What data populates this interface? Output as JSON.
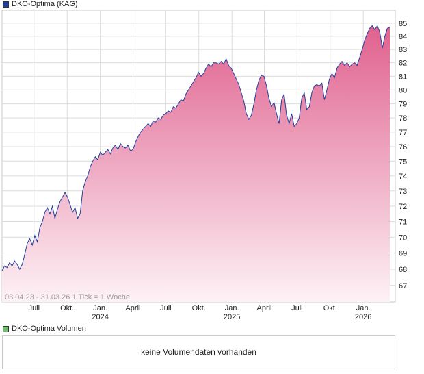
{
  "legend_price": {
    "label": "DKO-Optima (KAG)",
    "color": "#1f3f9c"
  },
  "legend_volume": {
    "label": "DKO-Optima Volumen",
    "color": "#6dbf6d"
  },
  "range_label": "03.04.23 - 31.03.26   1 Tick = 1 Woche",
  "volume_message": "keine Volumendaten vorhanden",
  "colors": {
    "line": "#1f3f9c",
    "fill_top": "#e0618e",
    "fill_bottom": "#fdf2f6",
    "grid": "#dcdcdc"
  },
  "chart_data": {
    "type": "area",
    "title": "",
    "xlabel": "",
    "ylabel": "",
    "x_range": [
      "2023-04-03",
      "2026-03-31"
    ],
    "ylim": [
      66,
      86
    ],
    "y_scale": "log",
    "yticks": [
      67,
      68,
      69,
      70,
      71,
      72,
      73,
      74,
      75,
      76,
      77,
      78,
      79,
      80,
      81,
      82,
      83,
      84,
      85
    ],
    "xticks": [
      {
        "date": "2023-07-01",
        "label": "Juli",
        "sub": ""
      },
      {
        "date": "2023-10-01",
        "label": "Okt.",
        "sub": ""
      },
      {
        "date": "2024-01-01",
        "label": "Jan.",
        "sub": "2024"
      },
      {
        "date": "2024-04-01",
        "label": "April",
        "sub": ""
      },
      {
        "date": "2024-07-01",
        "label": "Juli",
        "sub": ""
      },
      {
        "date": "2024-10-01",
        "label": "Okt.",
        "sub": ""
      },
      {
        "date": "2025-01-01",
        "label": "Jan.",
        "sub": "2025"
      },
      {
        "date": "2025-04-01",
        "label": "April",
        "sub": ""
      },
      {
        "date": "2025-07-01",
        "label": "Juli",
        "sub": ""
      },
      {
        "date": "2025-10-01",
        "label": "Okt.",
        "sub": ""
      },
      {
        "date": "2026-01-01",
        "label": "Jan.",
        "sub": "2026"
      }
    ],
    "grid": true,
    "series": [
      {
        "points": [
          [
            "2023-04-03",
            67.9
          ],
          [
            "2023-04-10",
            68.2
          ],
          [
            "2023-04-17",
            68.1
          ],
          [
            "2023-04-24",
            68.4
          ],
          [
            "2023-05-01",
            68.2
          ],
          [
            "2023-05-08",
            68.5
          ],
          [
            "2023-05-15",
            68.3
          ],
          [
            "2023-05-22",
            68.0
          ],
          [
            "2023-05-29",
            68.3
          ],
          [
            "2023-06-05",
            68.9
          ],
          [
            "2023-06-12",
            69.6
          ],
          [
            "2023-06-19",
            69.9
          ],
          [
            "2023-06-26",
            69.5
          ],
          [
            "2023-07-03",
            70.1
          ],
          [
            "2023-07-10",
            69.7
          ],
          [
            "2023-07-17",
            70.6
          ],
          [
            "2023-07-24",
            71.0
          ],
          [
            "2023-07-31",
            71.6
          ],
          [
            "2023-08-07",
            71.9
          ],
          [
            "2023-08-14",
            71.5
          ],
          [
            "2023-08-21",
            72.0
          ],
          [
            "2023-08-28",
            71.2
          ],
          [
            "2023-09-04",
            71.8
          ],
          [
            "2023-09-11",
            72.3
          ],
          [
            "2023-09-18",
            72.6
          ],
          [
            "2023-09-25",
            72.9
          ],
          [
            "2023-10-02",
            72.6
          ],
          [
            "2023-10-09",
            72.1
          ],
          [
            "2023-10-16",
            71.6
          ],
          [
            "2023-10-23",
            71.9
          ],
          [
            "2023-10-30",
            71.2
          ],
          [
            "2023-11-06",
            71.5
          ],
          [
            "2023-11-13",
            73.0
          ],
          [
            "2023-11-20",
            73.6
          ],
          [
            "2023-11-27",
            74.0
          ],
          [
            "2023-12-04",
            74.6
          ],
          [
            "2023-12-11",
            75.0
          ],
          [
            "2023-12-18",
            75.3
          ],
          [
            "2023-12-25",
            75.1
          ],
          [
            "2024-01-01",
            75.6
          ],
          [
            "2024-01-08",
            75.4
          ],
          [
            "2024-01-15",
            75.6
          ],
          [
            "2024-01-22",
            75.8
          ],
          [
            "2024-01-29",
            75.5
          ],
          [
            "2024-02-05",
            75.9
          ],
          [
            "2024-02-12",
            76.1
          ],
          [
            "2024-02-19",
            75.8
          ],
          [
            "2024-02-26",
            76.2
          ],
          [
            "2024-03-04",
            76.0
          ],
          [
            "2024-03-11",
            75.9
          ],
          [
            "2024-03-18",
            76.1
          ],
          [
            "2024-03-25",
            75.7
          ],
          [
            "2024-04-01",
            75.8
          ],
          [
            "2024-04-08",
            76.3
          ],
          [
            "2024-04-15",
            76.7
          ],
          [
            "2024-04-22",
            77.0
          ],
          [
            "2024-04-29",
            77.2
          ],
          [
            "2024-05-06",
            77.4
          ],
          [
            "2024-05-13",
            77.6
          ],
          [
            "2024-05-20",
            77.4
          ],
          [
            "2024-05-27",
            77.8
          ],
          [
            "2024-06-03",
            77.7
          ],
          [
            "2024-06-10",
            78.0
          ],
          [
            "2024-06-17",
            77.9
          ],
          [
            "2024-06-24",
            78.2
          ],
          [
            "2024-07-01",
            78.3
          ],
          [
            "2024-07-08",
            78.5
          ],
          [
            "2024-07-15",
            78.4
          ],
          [
            "2024-07-22",
            78.8
          ],
          [
            "2024-07-29",
            78.7
          ],
          [
            "2024-08-05",
            79.0
          ],
          [
            "2024-08-12",
            79.3
          ],
          [
            "2024-08-19",
            79.2
          ],
          [
            "2024-08-26",
            79.7
          ],
          [
            "2024-09-02",
            80.0
          ],
          [
            "2024-09-09",
            80.3
          ],
          [
            "2024-09-16",
            80.6
          ],
          [
            "2024-09-23",
            80.9
          ],
          [
            "2024-09-30",
            81.3
          ],
          [
            "2024-10-07",
            81.0
          ],
          [
            "2024-10-14",
            81.2
          ],
          [
            "2024-10-21",
            81.6
          ],
          [
            "2024-10-28",
            81.9
          ],
          [
            "2024-11-04",
            81.7
          ],
          [
            "2024-11-11",
            82.0
          ],
          [
            "2024-11-18",
            82.0
          ],
          [
            "2024-11-25",
            81.9
          ],
          [
            "2024-12-02",
            82.1
          ],
          [
            "2024-12-09",
            81.9
          ],
          [
            "2024-12-16",
            82.3
          ],
          [
            "2024-12-23",
            81.8
          ],
          [
            "2024-12-30",
            81.6
          ],
          [
            "2025-01-06",
            81.2
          ],
          [
            "2025-01-13",
            80.8
          ],
          [
            "2025-01-20",
            80.4
          ],
          [
            "2025-01-27",
            79.8
          ],
          [
            "2025-02-03",
            79.2
          ],
          [
            "2025-02-10",
            78.3
          ],
          [
            "2025-02-17",
            77.9
          ],
          [
            "2025-02-24",
            78.2
          ],
          [
            "2025-03-03",
            79.0
          ],
          [
            "2025-03-10",
            80.0
          ],
          [
            "2025-03-17",
            80.7
          ],
          [
            "2025-03-24",
            81.1
          ],
          [
            "2025-03-31",
            81.0
          ],
          [
            "2025-04-07",
            80.3
          ],
          [
            "2025-04-14",
            79.4
          ],
          [
            "2025-04-21",
            78.8
          ],
          [
            "2025-04-28",
            79.1
          ],
          [
            "2025-05-05",
            78.3
          ],
          [
            "2025-05-12",
            77.6
          ],
          [
            "2025-05-19",
            79.3
          ],
          [
            "2025-05-26",
            79.7
          ],
          [
            "2025-06-02",
            78.2
          ],
          [
            "2025-06-09",
            77.6
          ],
          [
            "2025-06-16",
            78.3
          ],
          [
            "2025-06-23",
            77.4
          ],
          [
            "2025-06-30",
            77.6
          ],
          [
            "2025-07-07",
            78.0
          ],
          [
            "2025-07-14",
            79.4
          ],
          [
            "2025-07-21",
            79.8
          ],
          [
            "2025-07-28",
            78.6
          ],
          [
            "2025-08-04",
            78.8
          ],
          [
            "2025-08-11",
            79.8
          ],
          [
            "2025-08-18",
            80.3
          ],
          [
            "2025-08-25",
            80.4
          ],
          [
            "2025-09-01",
            80.3
          ],
          [
            "2025-09-08",
            80.5
          ],
          [
            "2025-09-15",
            79.3
          ],
          [
            "2025-09-22",
            80.0
          ],
          [
            "2025-09-29",
            80.8
          ],
          [
            "2025-10-06",
            81.2
          ],
          [
            "2025-10-13",
            80.9
          ],
          [
            "2025-10-20",
            81.6
          ],
          [
            "2025-10-27",
            81.9
          ],
          [
            "2025-11-03",
            82.1
          ],
          [
            "2025-11-10",
            81.8
          ],
          [
            "2025-11-17",
            82.0
          ],
          [
            "2025-11-24",
            81.7
          ],
          [
            "2025-12-01",
            81.9
          ],
          [
            "2025-12-08",
            82.0
          ],
          [
            "2025-12-15",
            81.8
          ],
          [
            "2025-12-22",
            82.4
          ],
          [
            "2025-12-29",
            83.0
          ],
          [
            "2026-01-05",
            83.7
          ],
          [
            "2026-01-12",
            84.2
          ],
          [
            "2026-01-19",
            84.6
          ],
          [
            "2026-01-26",
            84.8
          ],
          [
            "2026-02-02",
            84.5
          ],
          [
            "2026-02-09",
            84.8
          ],
          [
            "2026-02-16",
            84.3
          ],
          [
            "2026-02-23",
            83.1
          ],
          [
            "2026-03-02",
            84.0
          ],
          [
            "2026-03-09",
            84.6
          ],
          [
            "2026-03-16",
            84.7
          ]
        ]
      }
    ]
  }
}
